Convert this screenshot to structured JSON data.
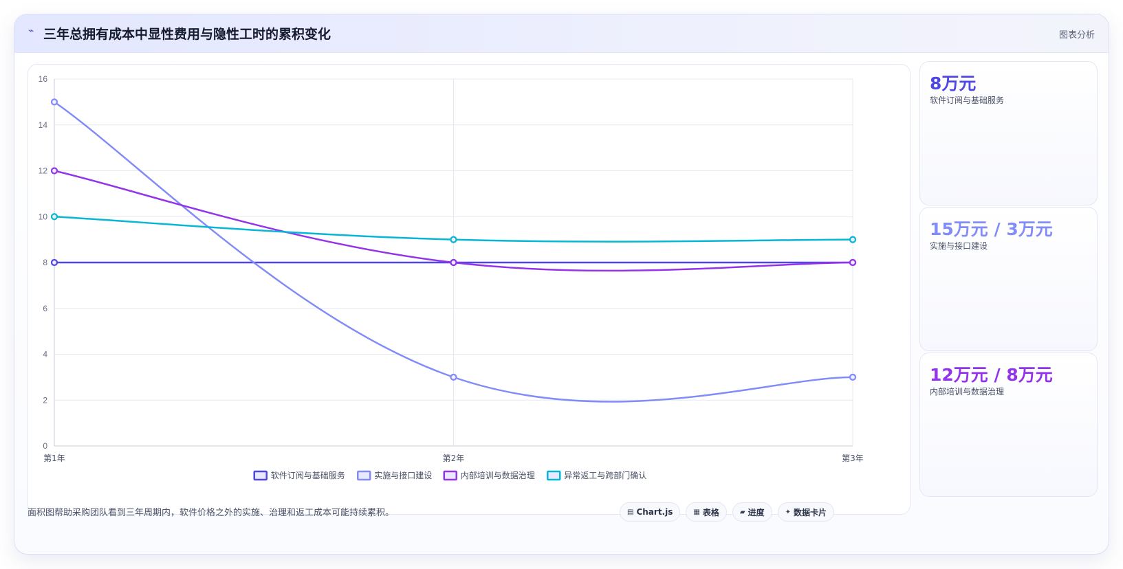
{
  "header": {
    "icon": "chart-line-icon",
    "title": "三年总拥有成本中显性费用与隐性工时的累积变化",
    "tag": "图表分析"
  },
  "chart_data": {
    "type": "line",
    "categories": [
      "第1年",
      "第2年",
      "第3年"
    ],
    "ylim": [
      0,
      16
    ],
    "yticks": [
      0,
      2,
      4,
      6,
      8,
      10,
      12,
      14,
      16
    ],
    "grid": true,
    "legend_position": "bottom",
    "series": [
      {
        "name": "软件订阅与基础服务",
        "values": [
          8,
          8,
          8
        ],
        "color": "#4f46e5"
      },
      {
        "name": "实施与接口建设",
        "values": [
          15,
          3,
          3
        ],
        "color": "#818cf8"
      },
      {
        "name": "内部培训与数据治理",
        "values": [
          12,
          8,
          8
        ],
        "color": "#9333ea"
      },
      {
        "name": "异常返工与跨部门确认",
        "values": [
          10,
          9,
          9
        ],
        "color": "#06b6d4"
      }
    ]
  },
  "side_cards": [
    {
      "value": "8万元",
      "label": "软件订阅与基础服务",
      "color": "#4f46e5"
    },
    {
      "value": "15万元 / 3万元",
      "label": "实施与接口建设",
      "color": "#818cf8"
    },
    {
      "value": "12万元 / 8万元",
      "label": "内部培训与数据治理",
      "color": "#9333ea"
    }
  ],
  "footer": {
    "note": "面积图帮助采购团队看到三年周期内，软件价格之外的实施、治理和返工成本可能持续累积。",
    "chips": [
      {
        "icon": "chart-icon",
        "glyph": "▤",
        "label": "Chart.js"
      },
      {
        "icon": "table-icon",
        "glyph": "▦",
        "label": "表格"
      },
      {
        "icon": "progress-icon",
        "glyph": "▰",
        "label": "进度"
      },
      {
        "icon": "card-icon",
        "glyph": "✦",
        "label": "数据卡片"
      }
    ]
  }
}
